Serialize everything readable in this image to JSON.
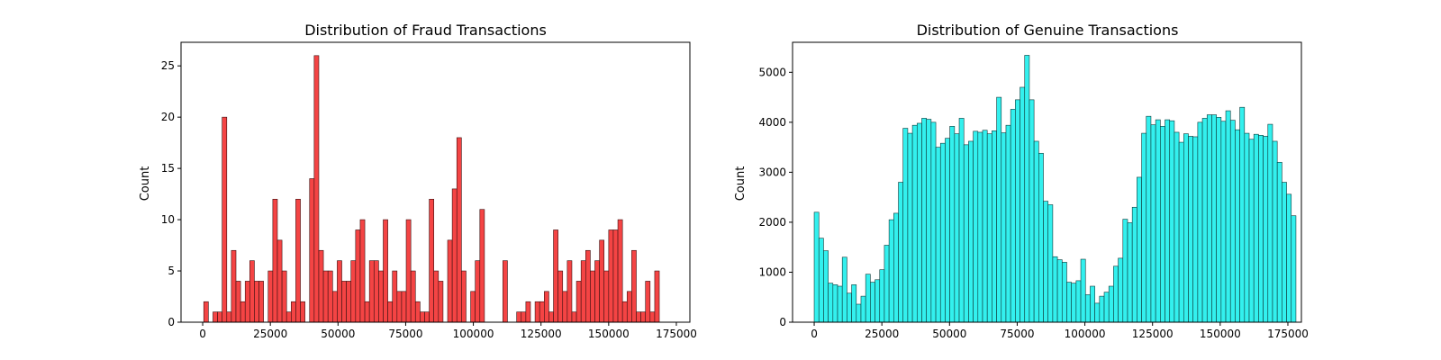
{
  "chart_data": [
    {
      "type": "bar",
      "title": "Distribution of Fraud Transactions",
      "xlabel": "",
      "ylabel": "Count",
      "bar_color": "#f44444",
      "edge_color": "#3a1010",
      "xlim": [
        -8000,
        180000
      ],
      "ylim": [
        0,
        27.3
      ],
      "xticks": [
        0,
        25000,
        50000,
        75000,
        100000,
        125000,
        150000,
        175000
      ],
      "yticks": [
        0,
        5,
        10,
        15,
        20,
        25
      ],
      "bin_start": 400,
      "bin_width": 1700,
      "values": [
        2,
        0,
        1,
        1,
        20,
        1,
        7,
        4,
        2,
        4,
        6,
        4,
        4,
        0,
        5,
        12,
        8,
        5,
        1,
        2,
        12,
        2,
        0,
        14,
        26,
        7,
        5,
        5,
        3,
        6,
        4,
        4,
        6,
        9,
        10,
        2,
        6,
        6,
        5,
        10,
        2,
        5,
        3,
        3,
        10,
        5,
        2,
        1,
        1,
        12,
        5,
        4,
        0,
        8,
        13,
        18,
        5,
        0,
        3,
        6,
        11,
        0,
        0,
        0,
        0,
        6,
        0,
        0,
        1,
        1,
        2,
        0,
        2,
        2,
        3,
        1,
        9,
        5,
        3,
        6,
        1,
        4,
        6,
        7,
        5,
        6,
        8,
        5,
        9,
        9,
        10,
        2,
        3,
        7,
        1,
        1,
        4,
        1,
        5
      ]
    },
    {
      "type": "bar",
      "title": "Distribution of Genuine Transactions",
      "xlabel": "",
      "ylabel": "Count",
      "bar_color": "#33f0ee",
      "edge_color": "#0e3838",
      "xlim": [
        -8000,
        180000
      ],
      "ylim": [
        0,
        5600
      ],
      "xticks": [
        0,
        25000,
        50000,
        75000,
        100000,
        125000,
        150000,
        175000
      ],
      "yticks": [
        0,
        1000,
        2000,
        3000,
        4000,
        5000
      ],
      "bin_start": 0,
      "bin_width": 1728,
      "values": [
        2200,
        1680,
        1430,
        780,
        750,
        720,
        1300,
        580,
        750,
        360,
        520,
        960,
        800,
        850,
        1050,
        1540,
        2050,
        2180,
        2800,
        3880,
        3780,
        3940,
        3980,
        4080,
        4060,
        4000,
        3500,
        3580,
        3680,
        3920,
        3770,
        4080,
        3550,
        3620,
        3820,
        3800,
        3840,
        3770,
        3830,
        4500,
        3790,
        3940,
        4260,
        4450,
        4700,
        5340,
        4450,
        3620,
        3380,
        2420,
        2350,
        1310,
        1250,
        1200,
        800,
        780,
        830,
        1260,
        550,
        720,
        380,
        520,
        600,
        720,
        1120,
        1280,
        2060,
        1990,
        2300,
        2900,
        3780,
        4120,
        3950,
        4050,
        3920,
        4050,
        4030,
        3800,
        3600,
        3770,
        3720,
        3710,
        4000,
        4080,
        4150,
        4150,
        4100,
        4020,
        4230,
        4040,
        3850,
        4300,
        3780,
        3660,
        3760,
        3740,
        3720,
        3960,
        3620,
        3200,
        2800,
        2560,
        2130
      ]
    }
  ]
}
